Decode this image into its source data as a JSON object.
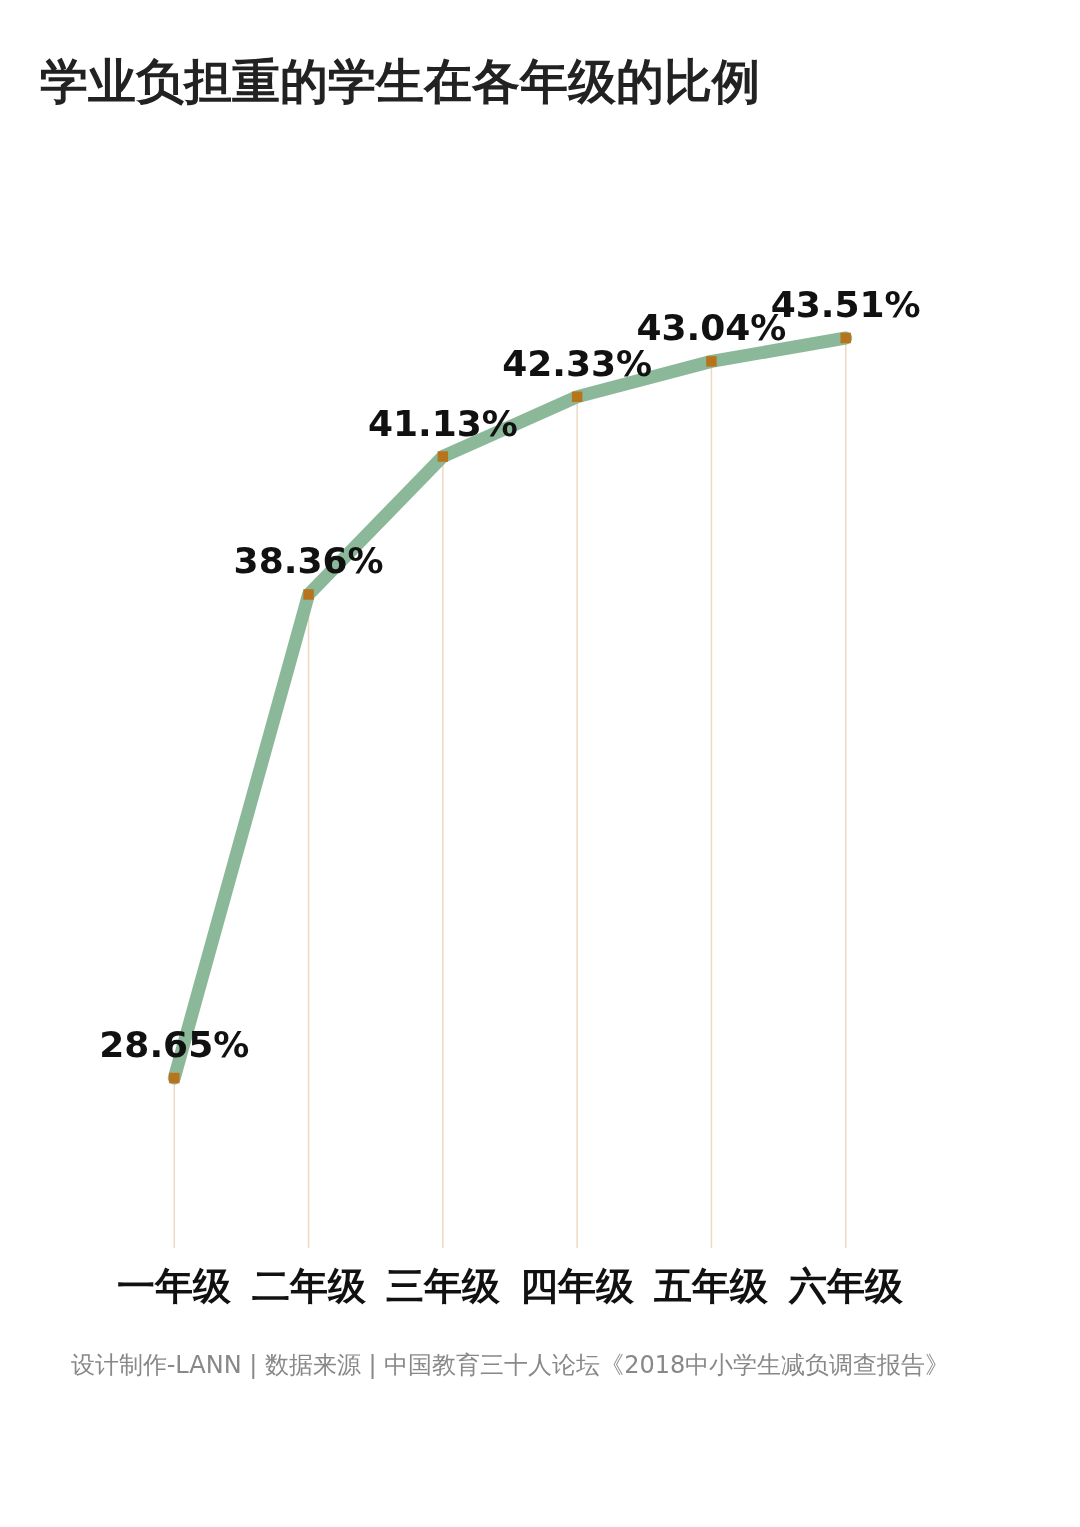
{
  "chart_data": {
    "type": "line",
    "title": "学业负担重的学生在各年级的比例",
    "categories": [
      "一年级",
      "二年级",
      "三年级",
      "四年级",
      "五年级",
      "六年级"
    ],
    "series": [
      {
        "color": "#8cb89a",
        "values": [
          28.65,
          38.36,
          41.13,
          42.33,
          43.04,
          43.51
        ],
        "value_labels": [
          "28.65%",
          "38.36%",
          "41.13%",
          "42.33%",
          "43.04%",
          "43.51%"
        ]
      }
    ],
    "tick_labels": "x",
    "grid": "x",
    "marker": "square",
    "line_style": "solid",
    "annotations": [
      "设计制作-LANN | 数据来源 | 中国教育三十人论坛《2018中小学生减负调查报告》"
    ]
  }
}
